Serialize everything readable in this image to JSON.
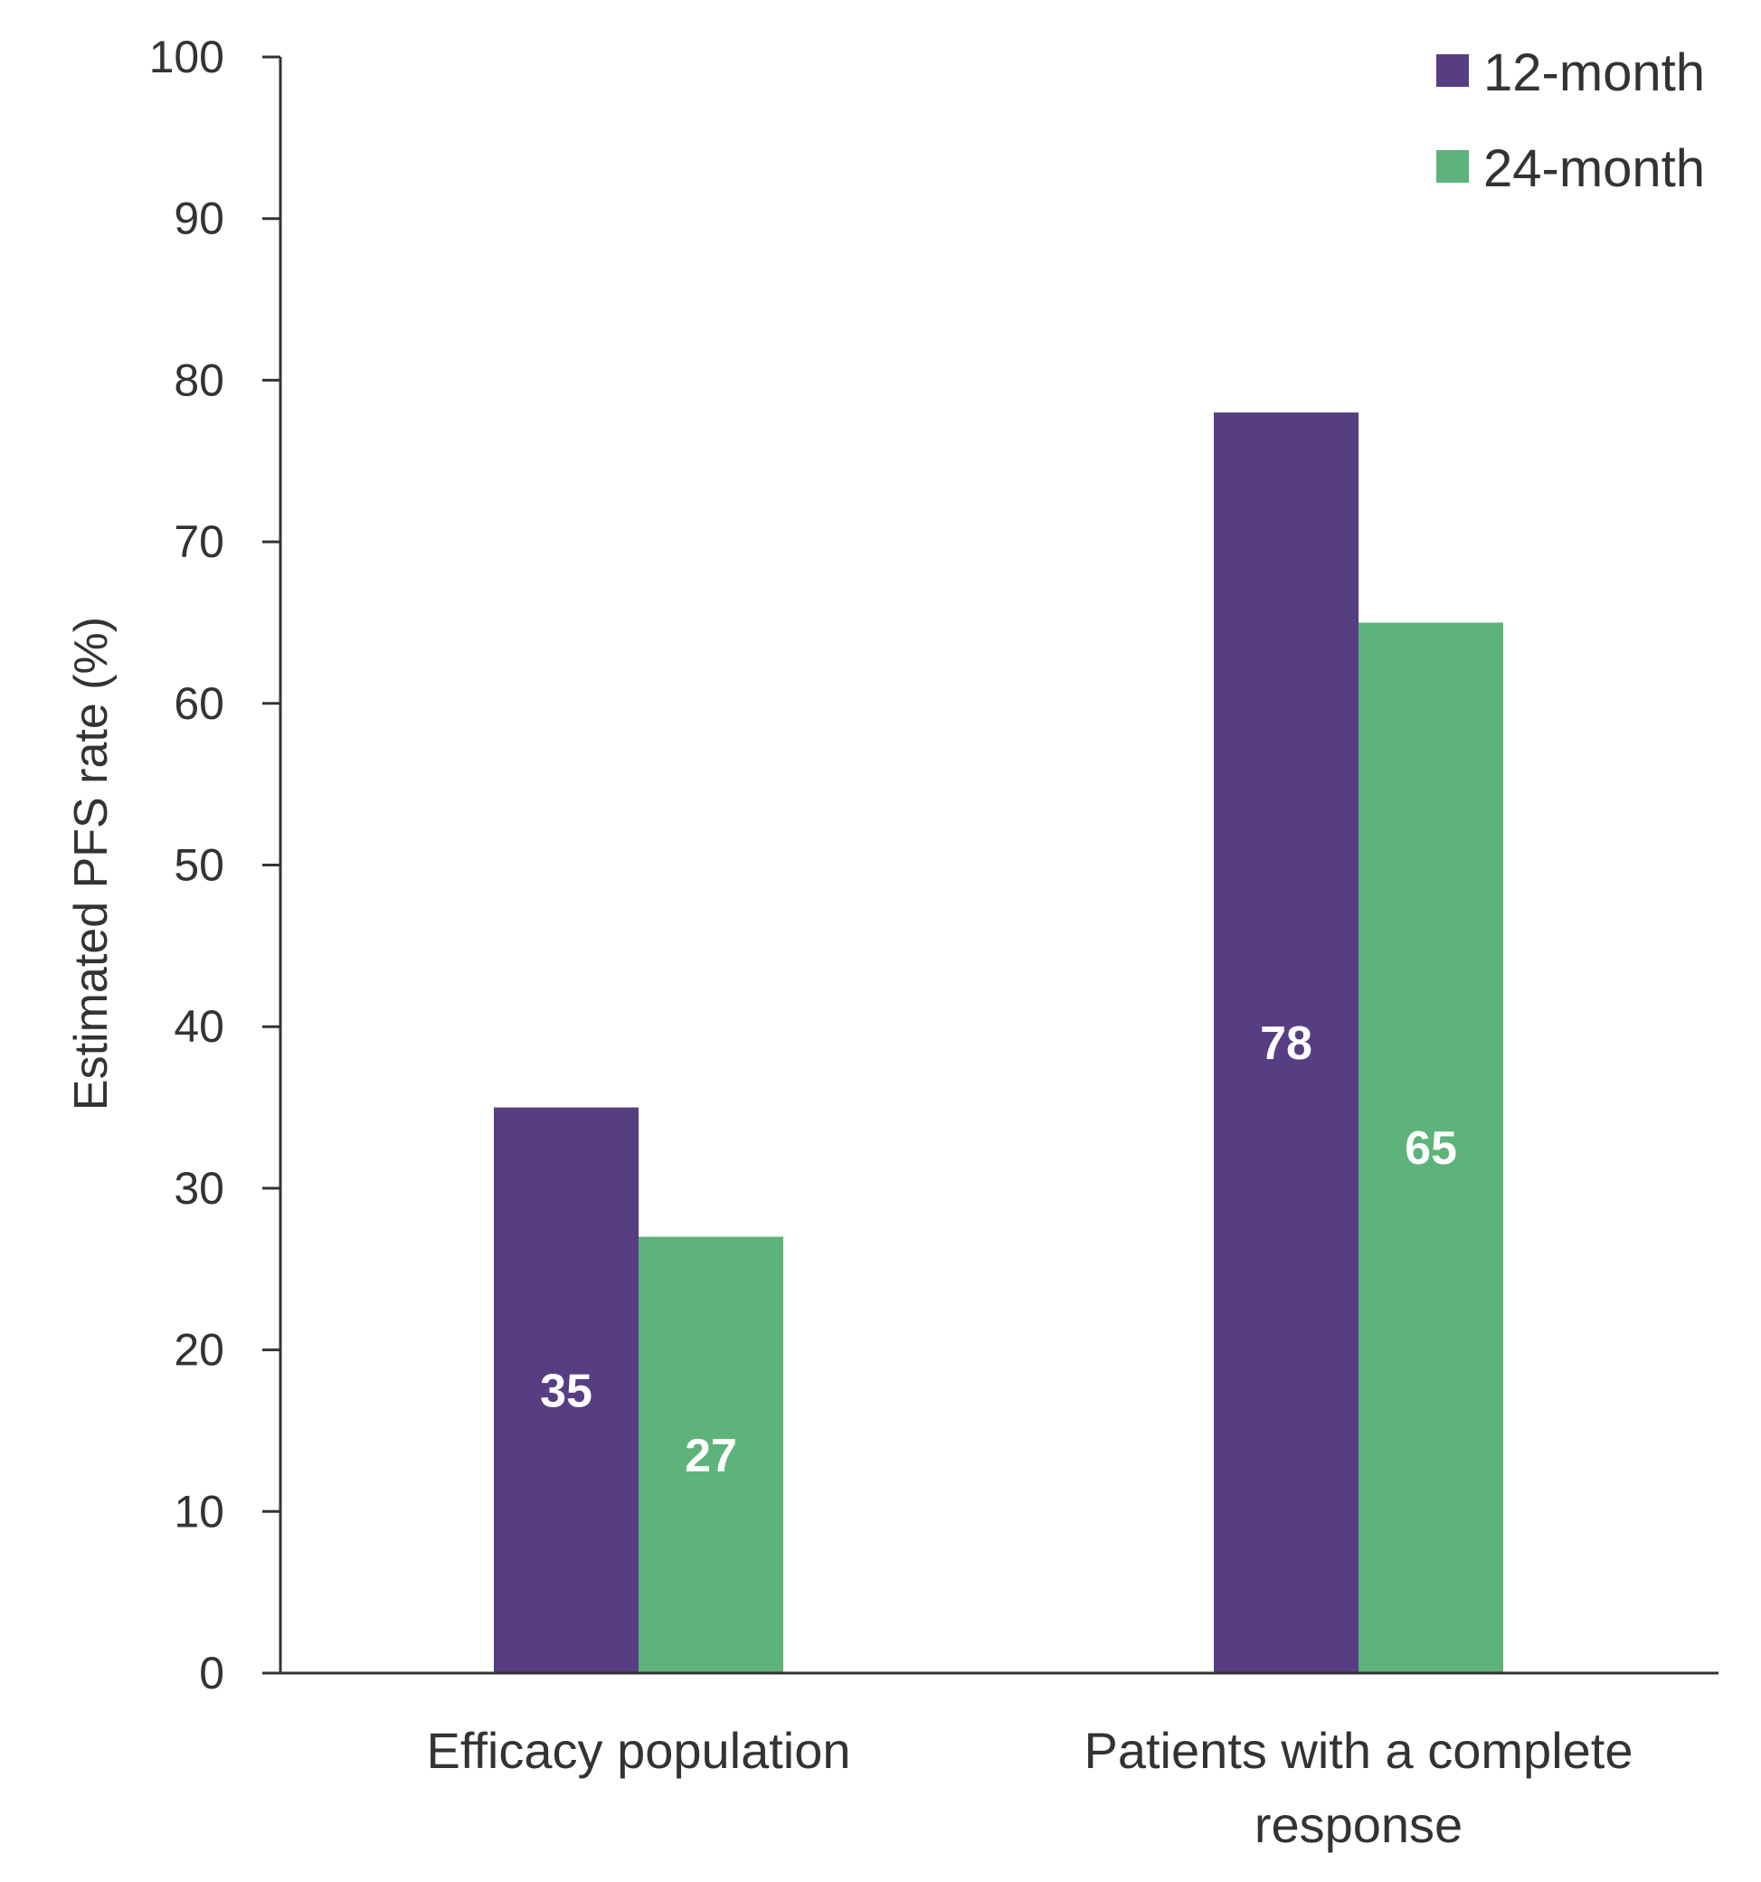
{
  "chart_data": {
    "type": "bar",
    "ylabel": "Estimated PFS rate (%)",
    "xlabel": "",
    "ylim": [
      0,
      100
    ],
    "yticks": [
      0,
      10,
      20,
      30,
      40,
      50,
      60,
      70,
      80,
      90,
      100
    ],
    "categories": [
      [
        "Efficacy population"
      ],
      [
        "Patients with a complete",
        "response"
      ]
    ],
    "series": [
      {
        "name": "12-month",
        "color": "#573d82",
        "values": [
          35,
          78
        ]
      },
      {
        "name": "24-month",
        "color": "#5db37a",
        "values": [
          27,
          65
        ]
      }
    ],
    "legend_position": "top-right",
    "grid": false
  }
}
